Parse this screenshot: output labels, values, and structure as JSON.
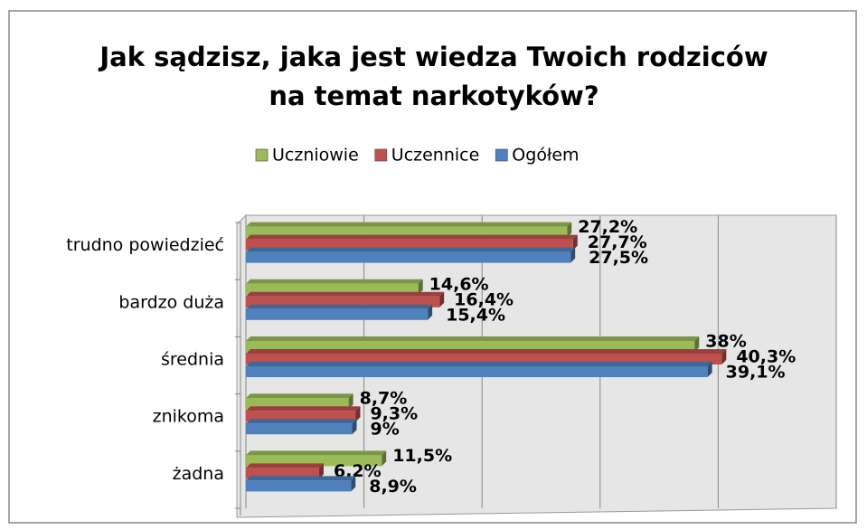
{
  "chart_data": {
    "type": "hbar3d",
    "title": "Jak sądzisz, jaka jest wiedza Twoich rodziców na temat narkotyków?",
    "categories": [
      "trudno powiedzieć",
      "bardzo duża",
      "średnia",
      "znikoma",
      "żadna"
    ],
    "series": [
      {
        "name": "Uczniowie",
        "color": "#9bbb59",
        "values": [
          27.2,
          14.6,
          38,
          8.7,
          11.5
        ],
        "value_labels": [
          "27,2%",
          "14,6%",
          "38%",
          "8,7%",
          "11,5%"
        ]
      },
      {
        "name": "Uczennice",
        "color": "#c0504d",
        "values": [
          27.7,
          16.4,
          40.3,
          9.3,
          6.2
        ],
        "value_labels": [
          "27,7%",
          "16,4%",
          "40,3%",
          "9,3%",
          "6,2%"
        ]
      },
      {
        "name": "Ogółem",
        "color": "#4f81bd",
        "values": [
          27.5,
          15.4,
          39.1,
          9,
          8.9
        ],
        "value_labels": [
          "27,5%",
          "15,4%",
          "39,1%",
          "9%",
          "8,9%"
        ]
      }
    ],
    "xlim": [
      0,
      50
    ],
    "xticks": [
      0,
      10,
      20,
      30,
      40,
      50
    ],
    "grid": true,
    "legend": "top"
  }
}
